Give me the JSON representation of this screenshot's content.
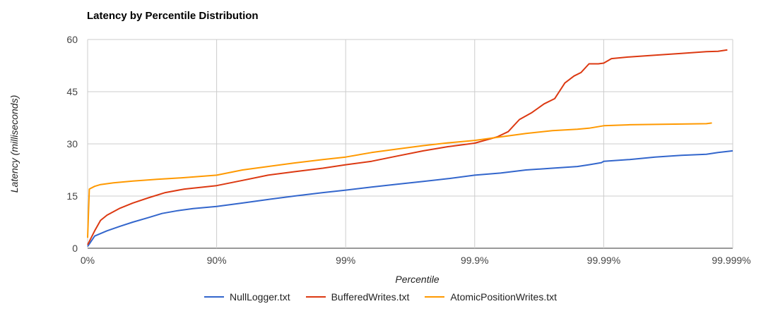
{
  "chart_data": {
    "type": "line",
    "title": "Latency by Percentile Distribution",
    "xlabel": "Percentile",
    "ylabel": "Latency (milliseconds)",
    "x_scale": "log10(1/(1-percentile))",
    "xlim": [
      0,
      99.999
    ],
    "ylim": [
      0,
      60
    ],
    "x_ticks": [
      {
        "value": 0,
        "label": "0%"
      },
      {
        "value": 90,
        "label": "90%"
      },
      {
        "value": 99,
        "label": "99%"
      },
      {
        "value": 99.9,
        "label": "99.9%"
      },
      {
        "value": 99.99,
        "label": "99.99%"
      },
      {
        "value": 99.999,
        "label": "99.999%"
      }
    ],
    "y_ticks": [
      0,
      15,
      30,
      45,
      60
    ],
    "grid": true,
    "legend_position": "bottom",
    "series": [
      {
        "name": "NullLogger.txt",
        "color": "#3366cc",
        "points": [
          [
            0,
            0.5
          ],
          [
            11.8,
            3.5
          ],
          [
            29.2,
            5.0
          ],
          [
            43.8,
            6.3
          ],
          [
            55.3,
            7.5
          ],
          [
            66.2,
            8.8
          ],
          [
            73.5,
            10.0
          ],
          [
            80.0,
            10.8
          ],
          [
            84.8,
            11.4
          ],
          [
            90.0,
            12.0
          ],
          [
            93.7,
            13.0
          ],
          [
            96.0,
            14.0
          ],
          [
            97.5,
            15.0
          ],
          [
            98.5,
            16.0
          ],
          [
            99.0,
            16.7
          ],
          [
            99.37,
            17.6
          ],
          [
            99.6,
            18.4
          ],
          [
            99.75,
            19.2
          ],
          [
            99.84,
            20.0
          ],
          [
            99.9,
            21.0
          ],
          [
            99.937,
            21.6
          ],
          [
            99.96,
            22.5
          ],
          [
            99.975,
            23.0
          ],
          [
            99.984,
            23.5
          ],
          [
            99.987,
            24.0
          ],
          [
            99.9896,
            24.6
          ],
          [
            99.99,
            25.0
          ],
          [
            99.9937,
            25.5
          ],
          [
            99.996,
            26.2
          ],
          [
            99.9975,
            26.7
          ],
          [
            99.9984,
            27.0
          ],
          [
            99.9987,
            27.5
          ],
          [
            99.999,
            28.0
          ]
        ]
      },
      {
        "name": "BufferedWrites.txt",
        "color": "#dc3912",
        "points": [
          [
            0,
            1.0
          ],
          [
            11.8,
            5.0
          ],
          [
            20.6,
            8.0
          ],
          [
            29.2,
            9.5
          ],
          [
            43.8,
            11.5
          ],
          [
            55.3,
            13.0
          ],
          [
            66.2,
            14.5
          ],
          [
            75.0,
            16.0
          ],
          [
            82.2,
            17.0
          ],
          [
            90.0,
            18.0
          ],
          [
            93.7,
            19.5
          ],
          [
            96.0,
            21.0
          ],
          [
            97.5,
            22.0
          ],
          [
            98.5,
            23.0
          ],
          [
            99.0,
            24.0
          ],
          [
            99.37,
            25.0
          ],
          [
            99.6,
            26.5
          ],
          [
            99.75,
            28.0
          ],
          [
            99.84,
            29.2
          ],
          [
            99.9,
            30.2
          ],
          [
            99.933,
            32.0
          ],
          [
            99.945,
            33.5
          ],
          [
            99.955,
            37.0
          ],
          [
            99.964,
            39.0
          ],
          [
            99.971,
            41.5
          ],
          [
            99.976,
            43.0
          ],
          [
            99.98,
            47.5
          ],
          [
            99.983,
            49.5
          ],
          [
            99.985,
            50.5
          ],
          [
            99.987,
            53.0
          ],
          [
            99.989,
            53.0
          ],
          [
            99.99,
            53.2
          ],
          [
            99.9913,
            54.5
          ],
          [
            99.9937,
            55.0
          ],
          [
            99.996,
            55.5
          ],
          [
            99.9975,
            56.0
          ],
          [
            99.9984,
            56.5
          ],
          [
            99.9987,
            56.6
          ],
          [
            99.9989,
            57.0
          ]
        ]
      },
      {
        "name": "AtomicPositionWrites.txt",
        "color": "#ff9900",
        "points": [
          [
            0,
            3.0
          ],
          [
            3.0,
            17.0
          ],
          [
            11.8,
            17.8
          ],
          [
            20.6,
            18.3
          ],
          [
            37.0,
            18.8
          ],
          [
            55.3,
            19.3
          ],
          [
            71.0,
            19.8
          ],
          [
            82.2,
            20.3
          ],
          [
            90.0,
            21.0
          ],
          [
            93.7,
            22.5
          ],
          [
            96.0,
            23.5
          ],
          [
            97.5,
            24.5
          ],
          [
            98.5,
            25.5
          ],
          [
            99.0,
            26.2
          ],
          [
            99.37,
            27.5
          ],
          [
            99.6,
            28.5
          ],
          [
            99.75,
            29.5
          ],
          [
            99.84,
            30.3
          ],
          [
            99.9,
            31.0
          ],
          [
            99.937,
            32.0
          ],
          [
            99.96,
            33.0
          ],
          [
            99.975,
            33.8
          ],
          [
            99.984,
            34.2
          ],
          [
            99.987,
            34.5
          ],
          [
            99.99,
            35.2
          ],
          [
            99.9937,
            35.5
          ],
          [
            99.996,
            35.6
          ],
          [
            99.9975,
            35.7
          ],
          [
            99.9984,
            35.8
          ],
          [
            99.99855,
            36.0
          ]
        ]
      }
    ]
  }
}
